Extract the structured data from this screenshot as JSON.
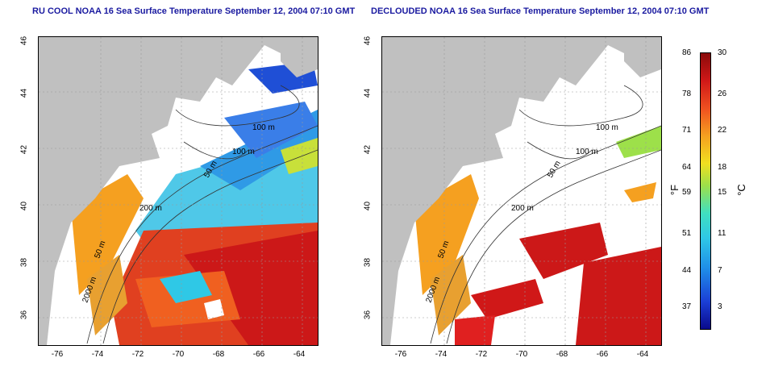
{
  "titles": {
    "left": "RU COOL NOAA 16 Sea Surface Temperature September 12, 2004 07:10 GMT",
    "right": "DECLOUDED NOAA 16 Sea Surface Temperature September 12, 2004 07:10 GMT"
  },
  "axes": {
    "lon_ticks": [
      "-76",
      "-74",
      "-72",
      "-70",
      "-68",
      "-66",
      "-64"
    ],
    "lat_ticks": [
      "46",
      "44",
      "42",
      "40",
      "38",
      "36"
    ]
  },
  "isobaths": {
    "left": [
      "100 m",
      "100 m",
      "50 m",
      "200 m",
      "50 m",
      "2000 m"
    ],
    "right": [
      "100 m",
      "100 m",
      "50 m",
      "200 m",
      "50 m",
      "2000 m"
    ]
  },
  "colorbar": {
    "fahrenheit_ticks": [
      "86",
      "78",
      "71",
      "64",
      "59",
      "51",
      "44",
      "37"
    ],
    "celsius_ticks": [
      "30",
      "26",
      "22",
      "18",
      "15",
      "11",
      "7",
      "3"
    ],
    "fahrenheit_unit": "°F",
    "celsius_unit": "°C",
    "colors": [
      "#0a0a8c",
      "#1b3fd6",
      "#1f8ee8",
      "#2fc8e6",
      "#40e0c0",
      "#9de04a",
      "#f0e020",
      "#f5a020",
      "#ef5020",
      "#d01818",
      "#8a0a0a"
    ]
  },
  "colors": {
    "land": "#c0c0c0",
    "cloud": "#ffffff",
    "title": "#1a1aa0"
  }
}
